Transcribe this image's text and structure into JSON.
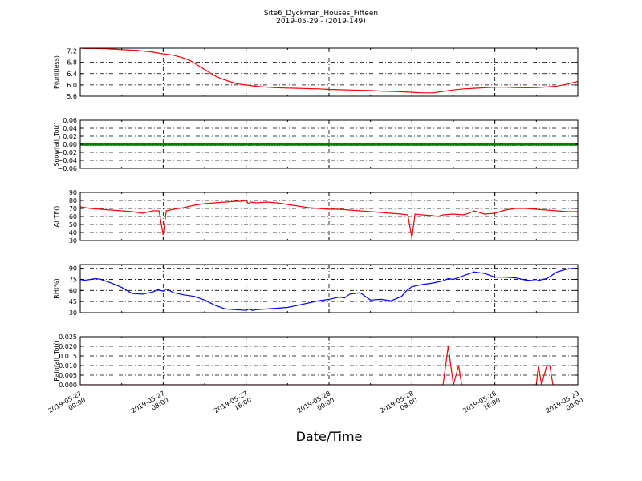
{
  "figure": {
    "title": "Site6_Dyckman_Houses_Fifteen",
    "subtitle": "2019-05-29 - (2019-149)",
    "xlabel": "Date/Time"
  },
  "chart_data": [
    {
      "type": "line",
      "ylabel": "P(unitless)",
      "ylim": [
        5.6,
        7.3
      ],
      "yticks": [
        "5.6",
        "6.0",
        "6.4",
        "6.8",
        "7.2"
      ],
      "ytick_values": [
        5.6,
        6.0,
        6.4,
        6.8,
        7.2
      ],
      "grid": true,
      "series": [
        {
          "color": "#ff0000",
          "x": [
            0,
            0.5,
            1,
            1.5,
            2,
            2.5,
            3,
            3.5,
            4,
            4.5,
            5,
            5.5,
            6,
            6.5,
            7,
            7.5,
            8,
            8.5,
            9,
            9.5,
            10,
            10.5,
            11,
            11.5,
            12,
            12.5,
            13,
            13.5,
            14,
            14.5,
            15,
            15.5,
            16,
            17,
            18,
            19,
            20,
            21,
            22,
            23,
            24,
            25,
            26,
            27,
            28,
            29,
            30,
            31,
            32,
            33,
            34,
            35,
            36,
            37,
            38,
            39,
            40,
            41,
            42,
            43,
            44,
            45,
            46,
            47,
            47.5,
            48
          ],
          "y": [
            7.3,
            7.29,
            7.29,
            7.29,
            7.28,
            7.28,
            7.27,
            7.26,
            7.25,
            7.24,
            7.23,
            7.22,
            7.2,
            7.18,
            7.16,
            7.13,
            7.1,
            7.08,
            7.05,
            7.0,
            6.95,
            6.88,
            6.78,
            6.66,
            6.55,
            6.43,
            6.32,
            6.24,
            6.17,
            6.11,
            6.05,
            6.02,
            6.0,
            5.95,
            5.92,
            5.9,
            5.89,
            5.88,
            5.87,
            5.86,
            5.84,
            5.83,
            5.82,
            5.81,
            5.8,
            5.78,
            5.77,
            5.76,
            5.74,
            5.72,
            5.72,
            5.77,
            5.82,
            5.86,
            5.88,
            5.9,
            5.92,
            5.92,
            5.91,
            5.9,
            5.91,
            5.93,
            5.96,
            6.03,
            6.08,
            6.12
          ]
        }
      ]
    },
    {
      "type": "scatter",
      "ylabel": "Snowfall_Tot()",
      "ylim": [
        -0.06,
        0.06
      ],
      "yticks": [
        "−0.06",
        "−0.04",
        "−0.02",
        "0.00",
        "0.02",
        "0.04",
        "0.06"
      ],
      "ytick_values": [
        -0.06,
        -0.04,
        -0.02,
        0.0,
        0.02,
        0.04,
        0.06
      ],
      "grid": true,
      "series": [
        {
          "color": "#008000",
          "x_start": 0,
          "x_end": 48,
          "x_step": 0.25,
          "constant_y": 0.0
        }
      ]
    },
    {
      "type": "line",
      "ylabel": "AirTF()",
      "ylim": [
        30,
        90
      ],
      "yticks": [
        "30",
        "40",
        "50",
        "60",
        "70",
        "80",
        "90"
      ],
      "ytick_values": [
        30,
        40,
        50,
        60,
        70,
        80,
        90
      ],
      "grid": true,
      "series": [
        {
          "color": "#ff0000",
          "x": [
            0,
            1,
            2,
            3,
            4,
            5,
            6,
            7,
            7.6,
            8.0,
            8.3,
            9,
            10,
            11,
            12,
            13,
            14,
            15,
            15.5,
            16,
            16.2,
            16.5,
            17,
            18,
            19,
            20,
            21,
            22,
            23,
            24,
            25,
            26,
            27,
            28,
            29,
            30,
            31,
            31.6,
            32.0,
            32.3,
            33,
            34,
            34.5,
            35,
            36,
            37,
            37.5,
            38,
            39,
            40,
            41,
            42,
            43,
            44,
            45,
            46,
            47,
            48
          ],
          "y": [
            72,
            70,
            69,
            68,
            67,
            66,
            64,
            67,
            67,
            37,
            67,
            69,
            71,
            74,
            76,
            77,
            78,
            79,
            79,
            80,
            76,
            78,
            77,
            78,
            77,
            75,
            73,
            71,
            70,
            69,
            69,
            68,
            67,
            66,
            65,
            64,
            63,
            62,
            33,
            63,
            62,
            61,
            60,
            62,
            63,
            62,
            64,
            67,
            63,
            64,
            68,
            70,
            70,
            69,
            68,
            67,
            66,
            66
          ]
        }
      ]
    },
    {
      "type": "line",
      "ylabel": "RH(%)",
      "ylim": [
        30,
        95
      ],
      "yticks": [
        "30",
        "45",
        "60",
        "75",
        "90"
      ],
      "ytick_values": [
        30,
        45,
        60,
        75,
        90
      ],
      "grid": true,
      "series": [
        {
          "color": "#0000ff",
          "x": [
            0,
            1,
            1.5,
            2,
            3,
            4,
            5,
            6,
            7,
            7.5,
            8,
            8.3,
            8.6,
            9,
            10,
            11,
            12,
            13,
            14,
            15,
            16,
            16.3,
            16.6,
            17,
            18,
            19,
            20,
            21,
            22,
            23,
            24,
            25,
            25.5,
            26,
            27,
            28,
            29,
            30,
            31,
            31.5,
            32,
            33,
            34,
            35,
            35.5,
            36,
            37,
            38,
            39,
            40,
            41,
            42,
            43,
            44,
            45,
            46,
            47,
            48
          ],
          "y": [
            73,
            75,
            76,
            75,
            70,
            64,
            56,
            55,
            58,
            61,
            59,
            62,
            60,
            57,
            54,
            52,
            47,
            40,
            35,
            34,
            33,
            35,
            33,
            34,
            35,
            36,
            37,
            40,
            43,
            46,
            48,
            51,
            50,
            55,
            57,
            47,
            48,
            46,
            52,
            60,
            65,
            68,
            70,
            73,
            76,
            75,
            80,
            85,
            83,
            78,
            78,
            77,
            74,
            73,
            76,
            85,
            89,
            90
          ]
        }
      ]
    },
    {
      "type": "line",
      "ylabel": "Rainfall_Tot()",
      "ylim": [
        0.0,
        0.025
      ],
      "yticks": [
        "0.000",
        "0.005",
        "0.010",
        "0.015",
        "0.020",
        "0.025"
      ],
      "ytick_values": [
        0.0,
        0.005,
        0.01,
        0.015,
        0.02,
        0.025
      ],
      "grid": true,
      "series": [
        {
          "color": "#ff0000",
          "x": [
            0,
            35,
            35.5,
            36,
            36.5,
            36.8,
            37.0,
            37.4,
            44,
            44.2,
            44.5,
            45.0,
            45.3,
            45.6,
            45.9,
            46.2,
            48
          ],
          "y": [
            0,
            0,
            0.02,
            0,
            0.01,
            0,
            0,
            0,
            0,
            0.01,
            0,
            0.01,
            0.01,
            0,
            0,
            0,
            0
          ]
        }
      ]
    }
  ],
  "x_axis": {
    "range": [
      0,
      48
    ],
    "ticks": [
      0,
      8,
      16,
      24,
      32,
      40,
      48
    ],
    "tick_labels": [
      [
        "2019-05-27",
        "00:00"
      ],
      [
        "2019-05-27",
        "08:00"
      ],
      [
        "2019-05-27",
        "16:00"
      ],
      [
        "2019-05-28",
        "00:00"
      ],
      [
        "2019-05-28",
        "08:00"
      ],
      [
        "2019-05-28",
        "16:00"
      ],
      [
        "2019-05-29",
        "00:00"
      ]
    ]
  }
}
